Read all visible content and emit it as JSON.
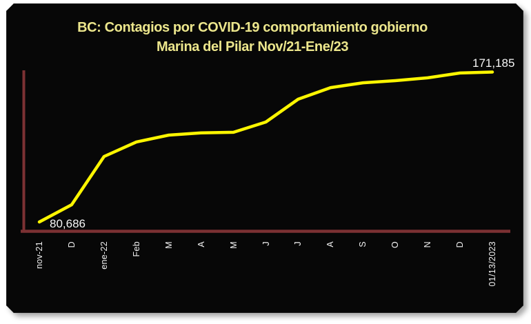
{
  "title": {
    "line1": "BC: Contagios por COVID-19 comportamiento gobierno",
    "line2": "Marina del Pilar Nov/21-Ene/23"
  },
  "point_labels": {
    "first": "80,686",
    "last": "171,185"
  },
  "colors": {
    "panel_background": "#070707",
    "page_background": "#ffffff",
    "title_text": "#ece68c",
    "line": "#fcf500",
    "axis": "#7c3133",
    "tick_text": "#f2f2f2",
    "data_label_text": "#f7f7f7"
  },
  "chart_data": {
    "type": "line",
    "title": "BC: Contagios por COVID-19 comportamiento gobierno",
    "subtitle": "Marina del Pilar Nov/21-Ene/23",
    "categories": [
      "nov-21",
      "D",
      "ene-22",
      "Feb",
      "M",
      "A",
      "M",
      "J",
      "J",
      "A",
      "S",
      "O",
      "N",
      "D",
      "01/13/2023"
    ],
    "values": [
      80686,
      91100,
      120200,
      129000,
      133100,
      134500,
      134800,
      141000,
      154800,
      161800,
      164700,
      166000,
      167700,
      170600,
      171185
    ],
    "first_value_exact": 80686,
    "last_value_exact": 171185,
    "xlabel": "",
    "ylabel": "",
    "ylim": [
      75000,
      175000
    ],
    "grid": false,
    "legend_position": "none",
    "x_tick_rotation": 90,
    "y_axis_ticks_visible": false
  }
}
